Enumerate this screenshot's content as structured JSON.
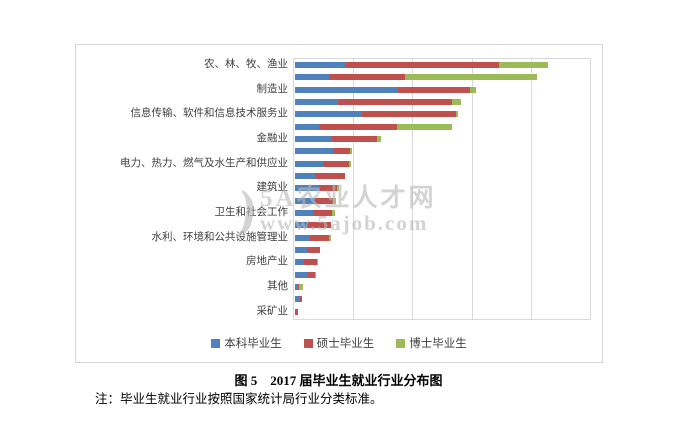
{
  "figure": {
    "caption": "图 5　2017 届毕业生就业行业分布图",
    "note": "注：毕业生就业行业按照国家统计局行业分类标准。",
    "watermark": {
      "logo_glyph": ")",
      "line1": "5A农业人才网",
      "line2": "www.5ajob.com"
    }
  },
  "chart_data": {
    "type": "bar",
    "orientation": "horizontal",
    "stacked": true,
    "title": "",
    "xlabel": "",
    "ylabel": "",
    "xlim": [
      0,
      25
    ],
    "gridline_interval": 5,
    "grid": true,
    "axis_tick_labels_visible": false,
    "legend_position": "bottom",
    "series_names": [
      "本科毕业生",
      "硕士毕业生",
      "博士毕业生"
    ],
    "series_colors": [
      "#4F81BD",
      "#C0504D",
      "#9BBB59"
    ],
    "note": "values are percent estimates; unlabeled rows are intermediate industry categories (axis shows every 2nd label)",
    "bars": [
      {
        "label": "农、林、牧、渔业",
        "values": [
          4.2,
          13.0,
          4.2
        ]
      },
      {
        "label": "",
        "values": [
          2.9,
          6.4,
          11.1
        ]
      },
      {
        "label": "制造业",
        "values": [
          8.7,
          6.1,
          0.5
        ]
      },
      {
        "label": "",
        "values": [
          3.65,
          9.6,
          0.8
        ]
      },
      {
        "label": "信息传输、软件和信息技术服务业",
        "values": [
          5.7,
          7.9,
          0.15
        ]
      },
      {
        "label": "",
        "values": [
          2.0,
          6.6,
          4.7
        ]
      },
      {
        "label": "金融业",
        "values": [
          3.1,
          3.8,
          0.35
        ]
      },
      {
        "label": "",
        "values": [
          3.25,
          1.4,
          0.2
        ]
      },
      {
        "label": "电力、热力、燃气及水生产和供应业",
        "values": [
          2.4,
          2.15,
          0.2
        ]
      },
      {
        "label": "",
        "values": [
          1.65,
          2.55,
          0
        ]
      },
      {
        "label": "建筑业",
        "values": [
          2.0,
          1.55,
          0.2
        ]
      },
      {
        "label": "",
        "values": [
          1.65,
          1.6,
          0.25
        ]
      },
      {
        "label": "卫生和社会工作",
        "values": [
          1.5,
          1.6,
          0.25
        ]
      },
      {
        "label": "",
        "values": [
          1.1,
          1.95,
          0
        ]
      },
      {
        "label": "水利、环境和公共设施管理业",
        "values": [
          1.25,
          1.6,
          0.2
        ]
      },
      {
        "label": "",
        "values": [
          1.0,
          1.15,
          0
        ]
      },
      {
        "label": "房地产业",
        "values": [
          0.75,
          1.1,
          0.1
        ]
      },
      {
        "label": "",
        "values": [
          1.1,
          0.55,
          0.1
        ]
      },
      {
        "label": "其他",
        "values": [
          0.25,
          0.1,
          0.3
        ]
      },
      {
        "label": "",
        "values": [
          0.4,
          0.15,
          0
        ]
      },
      {
        "label": "采矿业",
        "values": [
          0,
          0.25,
          0
        ]
      }
    ],
    "legend": [
      {
        "label": "本科毕业生",
        "color": "#4F81BD"
      },
      {
        "label": "硕士毕业生",
        "color": "#C0504D"
      },
      {
        "label": "博士毕业生",
        "color": "#9BBB59"
      }
    ]
  }
}
